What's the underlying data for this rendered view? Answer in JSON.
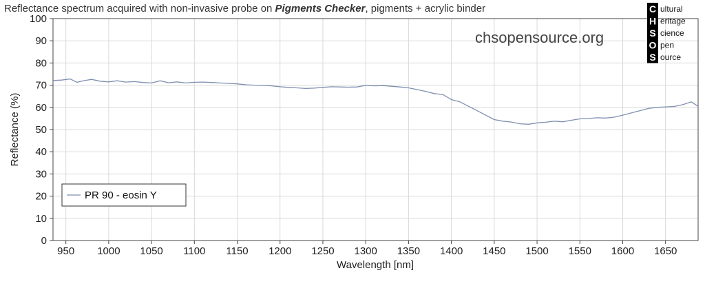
{
  "title": {
    "prefix": "Reflectance spectrum acquired with non-invasive probe on ",
    "emphasis": "Pigments Checker",
    "suffix": ", pigments + acrylic binder"
  },
  "watermark": "chsopensource.org",
  "logo": {
    "letters": [
      "C",
      "H",
      "S",
      "O",
      "S"
    ],
    "words": [
      "ultural",
      "eritage",
      "cience",
      "pen",
      "ource"
    ]
  },
  "colors": {
    "series": "#7f8fb0",
    "grid": "#d9d9d9",
    "axis": "#444444"
  },
  "chart_data": {
    "type": "line",
    "title": "Reflectance spectrum acquired with non-invasive probe on Pigments Checker, pigments + acrylic binder",
    "xlabel": "Wavelength [nm]",
    "ylabel": "Reflectance (%)",
    "xlim": [
      935,
      1688
    ],
    "ylim": [
      0,
      100
    ],
    "xticks": [
      950,
      1000,
      1050,
      1100,
      1150,
      1200,
      1250,
      1300,
      1350,
      1400,
      1450,
      1500,
      1550,
      1600,
      1650
    ],
    "yticks": [
      0,
      10,
      20,
      30,
      40,
      50,
      60,
      70,
      80,
      90,
      100
    ],
    "grid": true,
    "legend_position": "bottom-left",
    "series": [
      {
        "name": "PR 90 - eosin Y",
        "x": [
          935,
          945,
          955,
          963,
          970,
          980,
          990,
          1000,
          1010,
          1020,
          1030,
          1040,
          1050,
          1060,
          1070,
          1080,
          1090,
          1100,
          1110,
          1120,
          1130,
          1140,
          1150,
          1160,
          1170,
          1180,
          1190,
          1200,
          1210,
          1220,
          1230,
          1240,
          1250,
          1260,
          1270,
          1280,
          1290,
          1300,
          1310,
          1320,
          1330,
          1340,
          1350,
          1360,
          1370,
          1380,
          1390,
          1400,
          1410,
          1420,
          1430,
          1440,
          1450,
          1460,
          1470,
          1480,
          1490,
          1500,
          1510,
          1520,
          1530,
          1540,
          1550,
          1560,
          1570,
          1580,
          1590,
          1600,
          1610,
          1620,
          1630,
          1640,
          1650,
          1660,
          1670,
          1680,
          1688
        ],
        "y": [
          72.1,
          72.3,
          72.8,
          71.3,
          72.0,
          72.6,
          71.8,
          71.5,
          72.0,
          71.4,
          71.6,
          71.2,
          71.0,
          72.0,
          71.1,
          71.5,
          71.0,
          71.3,
          71.4,
          71.2,
          71.0,
          70.8,
          70.6,
          70.2,
          70.0,
          69.9,
          69.7,
          69.3,
          69.0,
          68.8,
          68.5,
          68.7,
          69.0,
          69.3,
          69.2,
          69.1,
          69.2,
          69.9,
          69.7,
          69.8,
          69.5,
          69.2,
          68.8,
          68.0,
          67.2,
          66.2,
          65.8,
          63.5,
          62.5,
          60.5,
          58.5,
          56.5,
          54.5,
          53.8,
          53.4,
          52.6,
          52.4,
          53.0,
          53.3,
          53.8,
          53.5,
          54.2,
          54.8,
          55.0,
          55.3,
          55.2,
          55.6,
          56.5,
          57.5,
          58.5,
          59.5,
          60.0,
          60.2,
          60.4,
          61.2,
          62.5,
          60.5
        ]
      }
    ]
  }
}
